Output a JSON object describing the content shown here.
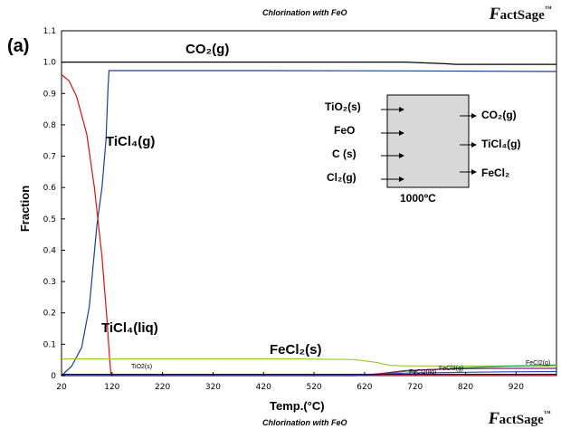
{
  "header": {
    "title": "Chlorination with FeO",
    "logo_prefix": "F",
    "logo_text": "actSage",
    "logo_tm": "™",
    "panel_label": "(a)"
  },
  "footer": {
    "title": "Chlorination with FeO",
    "logo_prefix": "F",
    "logo_text": "actSage",
    "logo_tm": "™"
  },
  "chart_data": {
    "type": "line",
    "title": "Chlorination with FeO",
    "xlabel": "Temp.(°C)",
    "ylabel": "Fraction",
    "xlim": [
      20,
      1000
    ],
    "ylim": [
      0,
      1.1
    ],
    "xticks": [
      "20",
      "120",
      "220",
      "320",
      "420",
      "520",
      "620",
      "720",
      "820",
      "920"
    ],
    "yticks": [
      "0",
      "0.1",
      "0.2",
      "0.3",
      "0.4",
      "0.5",
      "0.6",
      "0.7",
      "0.8",
      "0.9",
      "1.0",
      "1.1"
    ],
    "grid": false,
    "series": [
      {
        "name": "CO2(g)",
        "color": "#000000",
        "x": [
          20,
          120,
          300,
          500,
          600,
          700,
          780,
          800,
          1000
        ],
        "y": [
          1.0,
          1.0,
          1.0,
          1.0,
          1.0,
          1.0,
          0.995,
          0.993,
          0.993
        ]
      },
      {
        "name": "TiCl4(g)",
        "color": "#1a3f8c",
        "x": [
          20,
          40,
          60,
          75,
          90,
          100,
          108,
          112,
          114,
          120,
          400,
          700,
          1000
        ],
        "y": [
          0.0,
          0.03,
          0.09,
          0.22,
          0.48,
          0.6,
          0.75,
          0.92,
          0.973,
          0.973,
          0.973,
          0.972,
          0.97
        ]
      },
      {
        "name": "TiCl4(liq)",
        "color": "#e01010",
        "x": [
          20,
          35,
          50,
          70,
          85,
          100,
          110,
          115,
          118,
          1000
        ],
        "y": [
          0.96,
          0.94,
          0.89,
          0.77,
          0.6,
          0.38,
          0.18,
          0.06,
          0.0,
          0.0
        ]
      },
      {
        "name": "FeCl2(s)",
        "color": "#9acd32",
        "x": [
          20,
          100,
          200,
          500,
          600,
          640,
          670,
          700,
          1000
        ],
        "y": [
          0.053,
          0.053,
          0.053,
          0.053,
          0.051,
          0.043,
          0.033,
          0.031,
          0.031
        ]
      },
      {
        "name": "FeCl2(g)",
        "color": "#1aa04a",
        "x": [
          20,
          600,
          650,
          700,
          800,
          900,
          1000
        ],
        "y": [
          0.0,
          0.0,
          0.004,
          0.014,
          0.024,
          0.03,
          0.034
        ]
      },
      {
        "name": "FeCl3(g)",
        "color": "#8b1a6b",
        "x": [
          20,
          600,
          650,
          700,
          800,
          900,
          1000
        ],
        "y": [
          0.0,
          0.0,
          0.006,
          0.016,
          0.022,
          0.023,
          0.023
        ]
      },
      {
        "name": "FeCl2(liq)",
        "color": "#4040c0",
        "x": [
          20,
          600,
          650,
          700,
          800,
          900,
          1000
        ],
        "y": [
          0.0,
          0.0,
          0.004,
          0.008,
          0.01,
          0.012,
          0.013
        ]
      },
      {
        "name": "TiO2(s)",
        "color": "#0a0a6a",
        "x": [
          20,
          100,
          300,
          600,
          1000
        ],
        "y": [
          0.004,
          0.004,
          0.004,
          0.004,
          0.004
        ]
      }
    ],
    "annotations": [
      {
        "text": "CO₂(g)"
      },
      {
        "text": "TiCl₄(g)"
      },
      {
        "text": "TiCl₄(liq)"
      },
      {
        "text": "FeCl₂(s)"
      },
      {
        "text": "TiO2(s)"
      },
      {
        "text": "FeCl2(g)"
      },
      {
        "text": "FeCl3(g)"
      },
      {
        "text": "FeCl2(liq)"
      }
    ],
    "reaction_box": {
      "inputs": [
        "TiO₂(s)",
        "FeO",
        "C (s)",
        "Cl₂(g)"
      ],
      "outputs": [
        "CO₂(g)",
        "TiCl₄(g)",
        "FeCl₂"
      ],
      "temperature": "1000ºC",
      "fill": "#d8d8d8"
    }
  }
}
